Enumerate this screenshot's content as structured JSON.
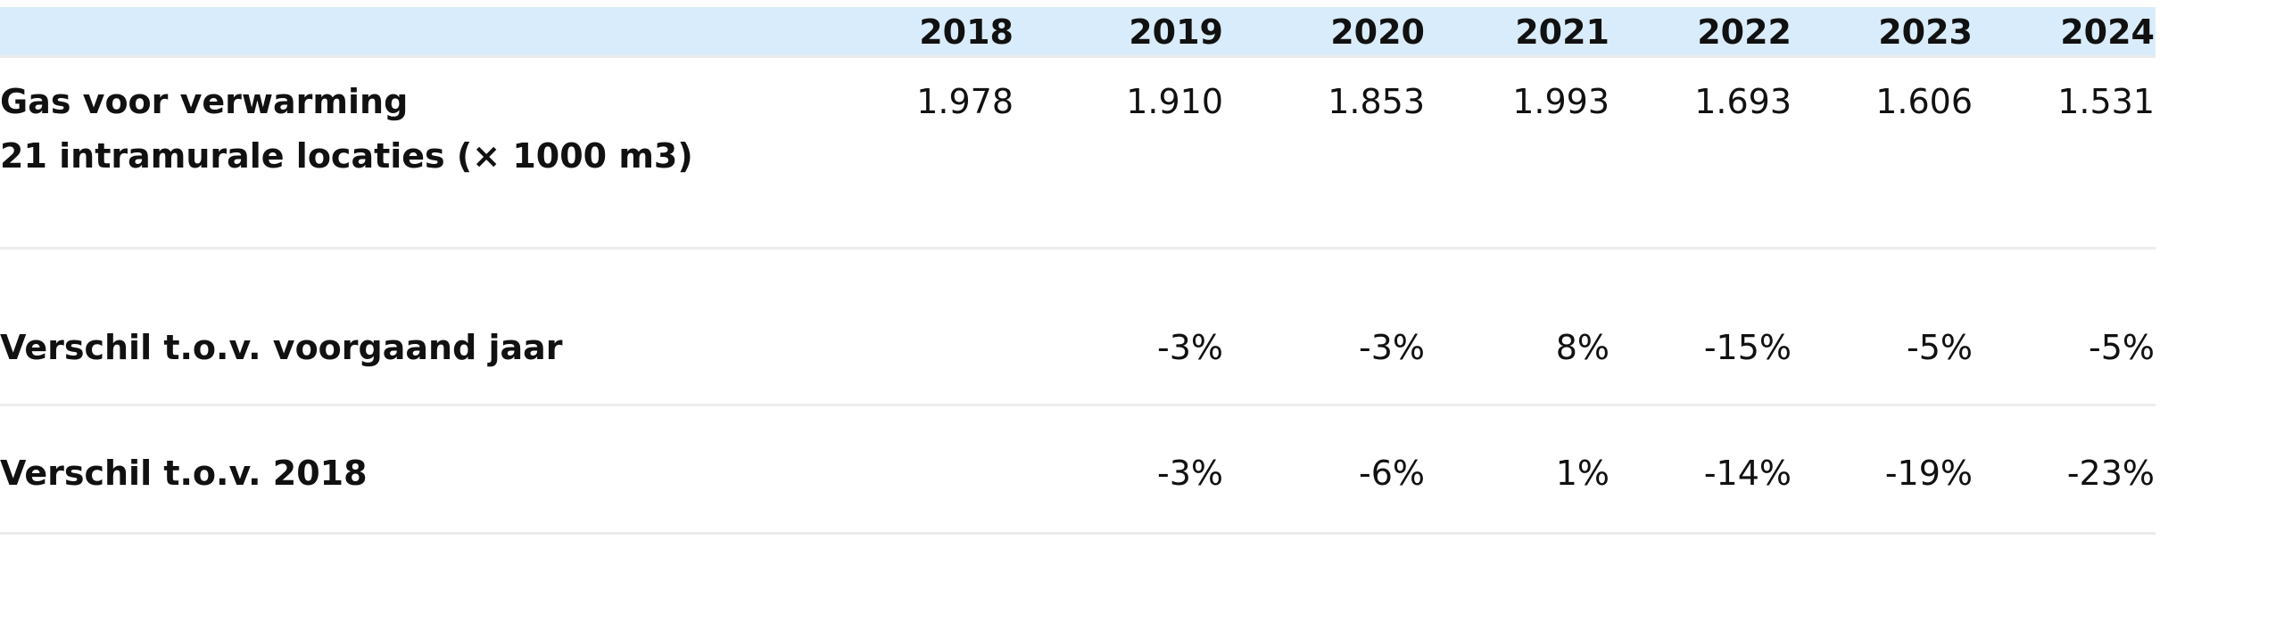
{
  "table": {
    "columns": [
      "2018",
      "2019",
      "2020",
      "2021",
      "2022",
      "2023",
      "2024"
    ],
    "rows": [
      {
        "label": [
          "Gas voor verwarming",
          "21 intramurale locaties (× 1000 m3)"
        ],
        "cells": [
          "1.978",
          "1.910",
          "1.853",
          "1.993",
          "1.693",
          "1.606",
          "1.531"
        ]
      },
      {
        "label": [
          "Verschil t.o.v. voorgaand jaar"
        ],
        "cells": [
          "-3%",
          "-3%",
          "8%",
          "-15%",
          "-5%",
          "-5%"
        ]
      },
      {
        "label": [
          "Verschil t.o.v. 2018"
        ],
        "cells": [
          "-3%",
          "-6%",
          "1%",
          "-14%",
          "-19%",
          "-23%"
        ]
      }
    ]
  }
}
